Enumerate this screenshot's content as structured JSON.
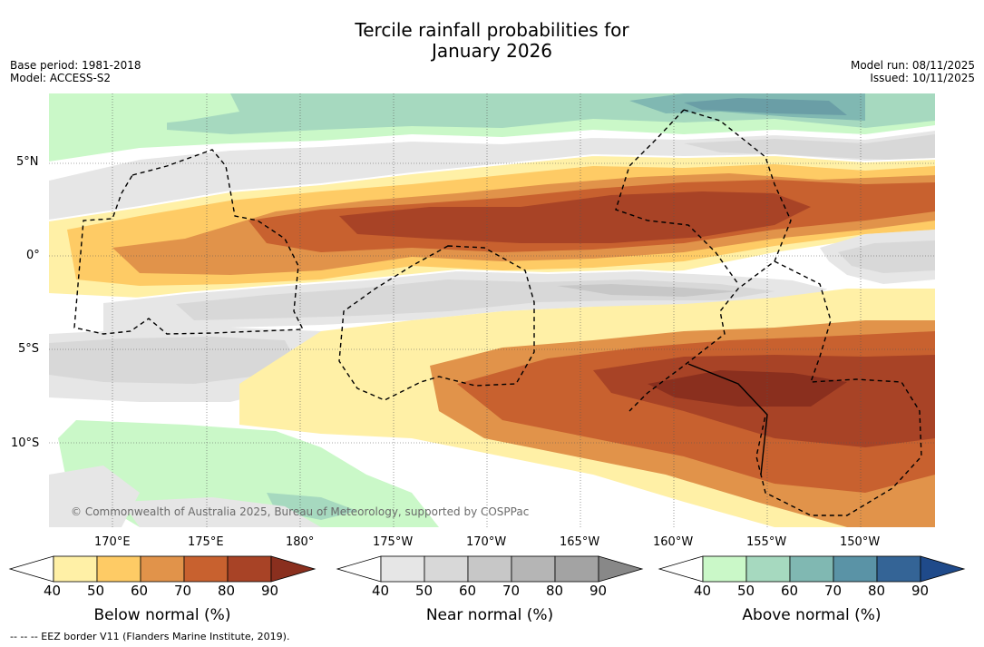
{
  "title_line1": "Tercile rainfall probabilities for",
  "title_line2": "January 2026",
  "base_period": "Base period: 1981-2018",
  "model": "Model: ACCESS-S2",
  "model_run": "Model run: 08/11/2025",
  "issued": "Issued: 10/11/2025",
  "copyright": "© Commonwealth of Australia 2025, Bureau of Meteorology, supported by COSPPac",
  "eez_note": "--  --  -- EEZ border V11 (Flanders Marine Institute, 2019).",
  "lat_labels": [
    "5°N",
    "0°",
    "5°S",
    "10°S"
  ],
  "lon_labels": [
    "170°E",
    "175°E",
    "180°",
    "175°W",
    "170°W",
    "165°W",
    "160°W",
    "155°W",
    "150°W"
  ],
  "colorbars": [
    {
      "title": "Below normal (%)",
      "ticks": [
        "40",
        "50",
        "60",
        "70",
        "80",
        "90"
      ],
      "colors": [
        "#ffffff",
        "#fff0a6",
        "#fecb65",
        "#e1934a",
        "#c8612f",
        "#a84326",
        "#8a2f1e"
      ]
    },
    {
      "title": "Near normal (%)",
      "ticks": [
        "40",
        "50",
        "60",
        "70",
        "80",
        "90"
      ],
      "colors": [
        "#ffffff",
        "#e6e6e6",
        "#d8d8d8",
        "#c7c7c7",
        "#b5b5b5",
        "#a3a3a3",
        "#888888"
      ]
    },
    {
      "title": "Above normal (%)",
      "ticks": [
        "40",
        "50",
        "60",
        "70",
        "80",
        "90"
      ],
      "colors": [
        "#ffffff",
        "#caf8c8",
        "#a6d9bf",
        "#80b8b2",
        "#5a93a6",
        "#346496",
        "#1f4a8a"
      ]
    }
  ],
  "colors": {
    "below50": "#fff0a6",
    "below60": "#fecb65",
    "below70": "#e1934a",
    "below80": "#c8612f",
    "below90": "#a84326",
    "below100": "#8a2f1e",
    "near50": "#e6e6e6",
    "near60": "#d8d8d8",
    "near70": "#c7c7c7",
    "above50": "#caf8c8",
    "above60": "#a6d9bf",
    "above70": "#80b8b2",
    "above80": "#5a93a6"
  }
}
